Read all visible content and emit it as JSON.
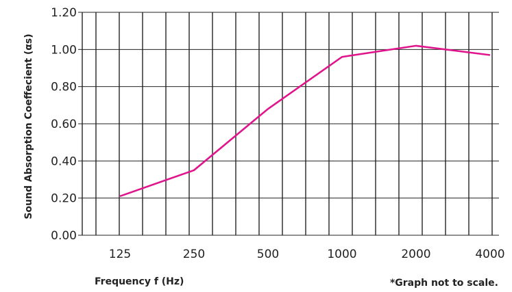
{
  "chart_data": {
    "type": "line",
    "x": [
      "125",
      "250",
      "500",
      "1000",
      "2000",
      "4000"
    ],
    "x_ticks": [
      "125",
      "250",
      "500",
      "1000",
      "2000",
      "4000"
    ],
    "series": [
      {
        "values": [
          0.21,
          0.35,
          0.68,
          0.96,
          1.02,
          0.97
        ],
        "color": "#e0158c"
      }
    ],
    "y_ticks": [
      "0.00",
      "0.20",
      "0.40",
      "0.60",
      "0.80",
      "1.00",
      "1.20"
    ],
    "ylim": [
      0,
      1.2
    ],
    "xlabel": "Frequency f (Hz)",
    "ylabel": "Sound Absorption Coeffecient (αs)",
    "note": "*Graph not to scale.",
    "grid": true
  }
}
